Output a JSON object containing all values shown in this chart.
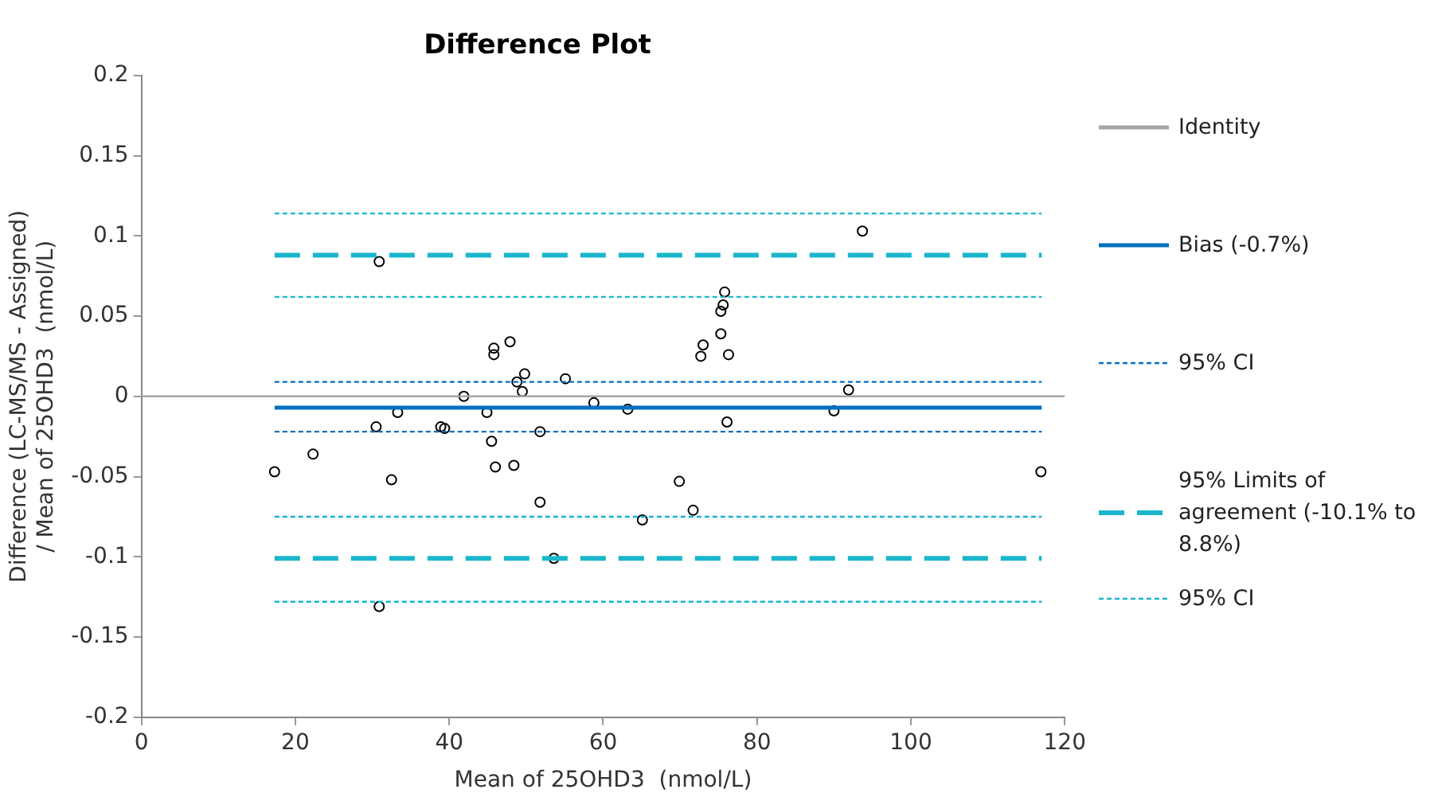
{
  "chart_data": {
    "type": "scatter",
    "title": "Difference Plot",
    "xlabel": "Mean of 25OHD3  (nmol/L)",
    "ylabel": "Difference (LC-MS/MS - Assigned) / Mean of 25OHD3  (nmol/L)",
    "xlim": [
      0,
      120
    ],
    "xticks": [
      0,
      20,
      40,
      60,
      80,
      100,
      120
    ],
    "ylim": [
      -0.2,
      0.2
    ],
    "yticks": [
      -0.2,
      -0.15,
      -0.1,
      -0.05,
      0,
      0.05,
      0.1,
      0.15,
      0.2
    ],
    "grid": false,
    "legend": "right",
    "series": [
      {
        "name": "Identity",
        "type": "line",
        "color": "#a6a6a6",
        "line_style": "solid",
        "marker": "none",
        "x": [
          0,
          120
        ],
        "values": [
          0,
          0
        ]
      },
      {
        "name": "Bias (-0.7%)",
        "type": "line",
        "color": "#0070c0",
        "line_style": "solid",
        "marker": "none",
        "x": [
          17.3,
          117
        ],
        "values": [
          -0.007,
          -0.007
        ]
      },
      {
        "name": "95% CI",
        "type": "line",
        "color": "#0070c0",
        "line_style": "dotted",
        "marker": "none",
        "x": [
          17.3,
          117
        ],
        "values": [
          0.009,
          0.009
        ]
      },
      {
        "type": "line",
        "color": "#0070c0",
        "line_style": "dotted",
        "marker": "none",
        "x": [
          17.3,
          117
        ],
        "values": [
          -0.022,
          -0.022
        ]
      },
      {
        "name": "95% Limits of agreement (-10.1% to 8.8%)",
        "type": "line",
        "color": "#1ab6cc",
        "line_style": "dashed",
        "marker": "none",
        "x": [
          17.3,
          117
        ],
        "values": [
          0.088,
          0.088
        ]
      },
      {
        "type": "line",
        "color": "#1ab6cc",
        "line_style": "dashed",
        "marker": "none",
        "x": [
          17.3,
          117
        ],
        "values": [
          -0.101,
          -0.101
        ]
      },
      {
        "name": "95% CI",
        "type": "line",
        "color": "#1ab6cc",
        "line_style": "dotted",
        "marker": "none",
        "x": [
          17.3,
          117
        ],
        "values": [
          0.114,
          0.114
        ]
      },
      {
        "type": "line",
        "color": "#1ab6cc",
        "line_style": "dotted",
        "marker": "none",
        "x": [
          17.3,
          117
        ],
        "values": [
          0.062,
          0.062
        ]
      },
      {
        "type": "line",
        "color": "#1ab6cc",
        "line_style": "dotted",
        "marker": "none",
        "x": [
          17.3,
          117
        ],
        "values": [
          -0.075,
          -0.075
        ]
      },
      {
        "type": "line",
        "color": "#1ab6cc",
        "line_style": "dotted",
        "marker": "none",
        "x": [
          17.3,
          117
        ],
        "values": [
          -0.128,
          -0.128
        ]
      },
      {
        "color": "#000000",
        "marker": "circle",
        "x": [
          17.3,
          22.3,
          30.9,
          30.5,
          33.3,
          32.5,
          30.9,
          38.9,
          39.4,
          41.9,
          44.9,
          45.5,
          46.0,
          45.8,
          45.8,
          47.9,
          48.4,
          48.8,
          49.8,
          49.5,
          51.8,
          51.8,
          53.6,
          55.1,
          58.8,
          63.2,
          65.1,
          69.9,
          71.7,
          72.7,
          73.0,
          75.3,
          75.3,
          75.6,
          75.8,
          76.3,
          76.1,
          90.0,
          91.9,
          93.7,
          116.9
        ],
        "values": [
          -0.047,
          -0.036,
          0.084,
          -0.019,
          -0.01,
          -0.052,
          -0.131,
          -0.019,
          -0.02,
          0.0,
          -0.01,
          -0.028,
          -0.044,
          0.03,
          0.026,
          0.034,
          -0.043,
          0.009,
          0.014,
          0.003,
          -0.022,
          -0.066,
          -0.101,
          0.011,
          -0.004,
          -0.008,
          -0.077,
          -0.053,
          -0.071,
          0.025,
          0.032,
          0.039,
          0.053,
          0.057,
          0.065,
          0.026,
          -0.016,
          -0.009,
          0.004,
          0.103,
          -0.047
        ]
      }
    ]
  }
}
